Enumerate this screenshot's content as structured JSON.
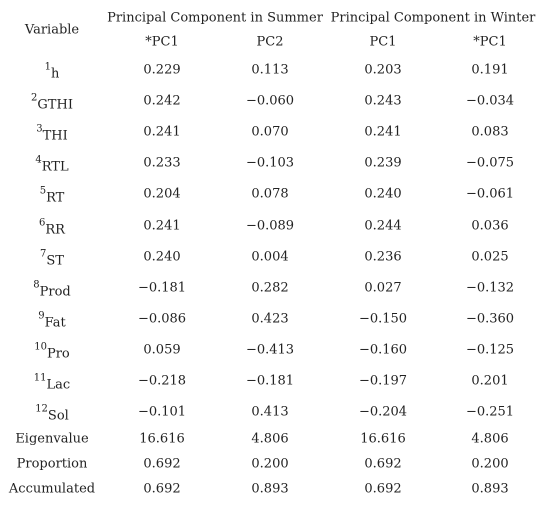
{
  "table": {
    "header": {
      "variable": "Variable",
      "groups": [
        "Principal Component in Summer",
        "Principal Component in Winter"
      ],
      "columns": [
        "*PC1",
        "PC2",
        "PC1",
        "*PC1"
      ]
    },
    "rows": [
      {
        "note": "1",
        "name": "h",
        "values": [
          "0.229",
          "0.113",
          "0.203",
          "0.191"
        ]
      },
      {
        "note": "2",
        "name": "GTHI",
        "values": [
          "0.242",
          "−0.060",
          "0.243",
          "−0.034"
        ]
      },
      {
        "note": "3",
        "name": "THI",
        "values": [
          "0.241",
          "0.070",
          "0.241",
          "0.083"
        ]
      },
      {
        "note": "4",
        "name": "RTL",
        "values": [
          "0.233",
          "−0.103",
          "0.239",
          "−0.075"
        ]
      },
      {
        "note": "5",
        "name": "RT",
        "values": [
          "0.204",
          "0.078",
          "0.240",
          "−0.061"
        ]
      },
      {
        "note": "6",
        "name": "RR",
        "values": [
          "0.241",
          "−0.089",
          "0.244",
          "0.036"
        ]
      },
      {
        "note": "7",
        "name": "ST",
        "values": [
          "0.240",
          "0.004",
          "0.236",
          "0.025"
        ]
      },
      {
        "note": "8",
        "name": "Prod",
        "values": [
          "−0.181",
          "0.282",
          "0.027",
          "−0.132"
        ]
      },
      {
        "note": "9",
        "name": "Fat",
        "values": [
          "−0.086",
          "0.423",
          "−0.150",
          "−0.360"
        ]
      },
      {
        "note": "10",
        "name": "Pro",
        "values": [
          "0.059",
          "−0.413",
          "−0.160",
          "−0.125"
        ]
      },
      {
        "note": "11",
        "name": "Lac",
        "values": [
          "−0.218",
          "−0.181",
          "−0.197",
          "0.201"
        ]
      },
      {
        "note": "12",
        "name": "Sol",
        "values": [
          "−0.101",
          "0.413",
          "−0.204",
          "−0.251"
        ]
      }
    ],
    "summary": [
      {
        "name": "Eigenvalue",
        "values": [
          "16.616",
          "4.806",
          "16.616",
          "4.806"
        ]
      },
      {
        "name": "Proportion",
        "values": [
          "0.692",
          "0.200",
          "0.692",
          "0.200"
        ]
      },
      {
        "name": "Accumulated",
        "values": [
          "0.692",
          "0.893",
          "0.692",
          "0.893"
        ]
      }
    ]
  }
}
